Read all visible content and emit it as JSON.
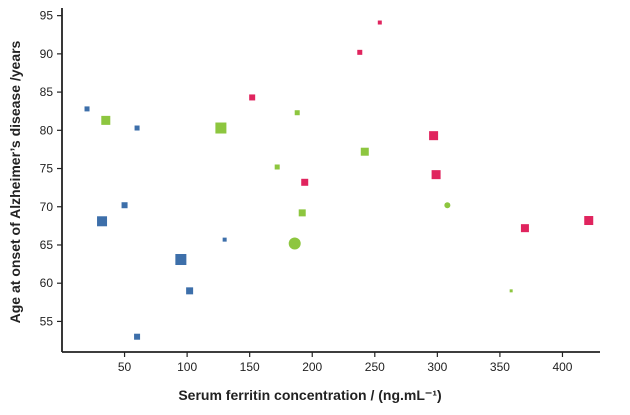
{
  "chart_data": {
    "type": "scatter",
    "title": "",
    "xlabel": "Serum ferritin concentration / (ng.mL⁻¹)",
    "ylabel": "Age at onset of Alzheimer’s disease /years",
    "xlim": [
      0,
      430
    ],
    "ylim": [
      51,
      96
    ],
    "xticks": [
      50,
      100,
      150,
      200,
      250,
      300,
      350,
      400
    ],
    "yticks": [
      55,
      60,
      65,
      70,
      75,
      80,
      85,
      90,
      95
    ],
    "grid": false,
    "legend": "none",
    "colors": {
      "blue": "#3d6faa",
      "green": "#8dc63f",
      "pink": "#e0245e"
    },
    "series": [
      {
        "color_key": "blue",
        "marker": "square",
        "points": [
          {
            "x": 20,
            "y": 82.8,
            "size": 5
          },
          {
            "x": 32,
            "y": 68.1,
            "size": 10
          },
          {
            "x": 50,
            "y": 70.2,
            "size": 6
          },
          {
            "x": 60,
            "y": 80.3,
            "size": 5
          },
          {
            "x": 60,
            "y": 53.0,
            "size": 6
          },
          {
            "x": 95,
            "y": 63.1,
            "size": 11
          },
          {
            "x": 102,
            "y": 59.0,
            "size": 7
          },
          {
            "x": 130,
            "y": 65.7,
            "size": 4
          }
        ]
      },
      {
        "color_key": "green",
        "marker": "square",
        "points": [
          {
            "x": 35,
            "y": 81.3,
            "size": 9
          },
          {
            "x": 127,
            "y": 80.3,
            "size": 11
          },
          {
            "x": 172,
            "y": 75.2,
            "size": 5
          },
          {
            "x": 188,
            "y": 82.3,
            "size": 5
          },
          {
            "x": 192,
            "y": 69.2,
            "size": 7
          },
          {
            "x": 242,
            "y": 77.2,
            "size": 8
          },
          {
            "x": 359,
            "y": 59.0,
            "size": 3
          }
        ]
      },
      {
        "color_key": "green",
        "marker": "circle",
        "points": [
          {
            "x": 186,
            "y": 65.2,
            "size": 12
          },
          {
            "x": 308,
            "y": 70.2,
            "size": 6
          }
        ]
      },
      {
        "color_key": "pink",
        "marker": "square",
        "points": [
          {
            "x": 152,
            "y": 84.3,
            "size": 6
          },
          {
            "x": 194,
            "y": 73.2,
            "size": 7
          },
          {
            "x": 238,
            "y": 90.2,
            "size": 5
          },
          {
            "x": 254,
            "y": 94.1,
            "size": 4
          },
          {
            "x": 297,
            "y": 79.3,
            "size": 9
          },
          {
            "x": 299,
            "y": 74.2,
            "size": 9
          },
          {
            "x": 370,
            "y": 67.2,
            "size": 8
          },
          {
            "x": 421,
            "y": 68.2,
            "size": 9
          }
        ]
      }
    ]
  }
}
